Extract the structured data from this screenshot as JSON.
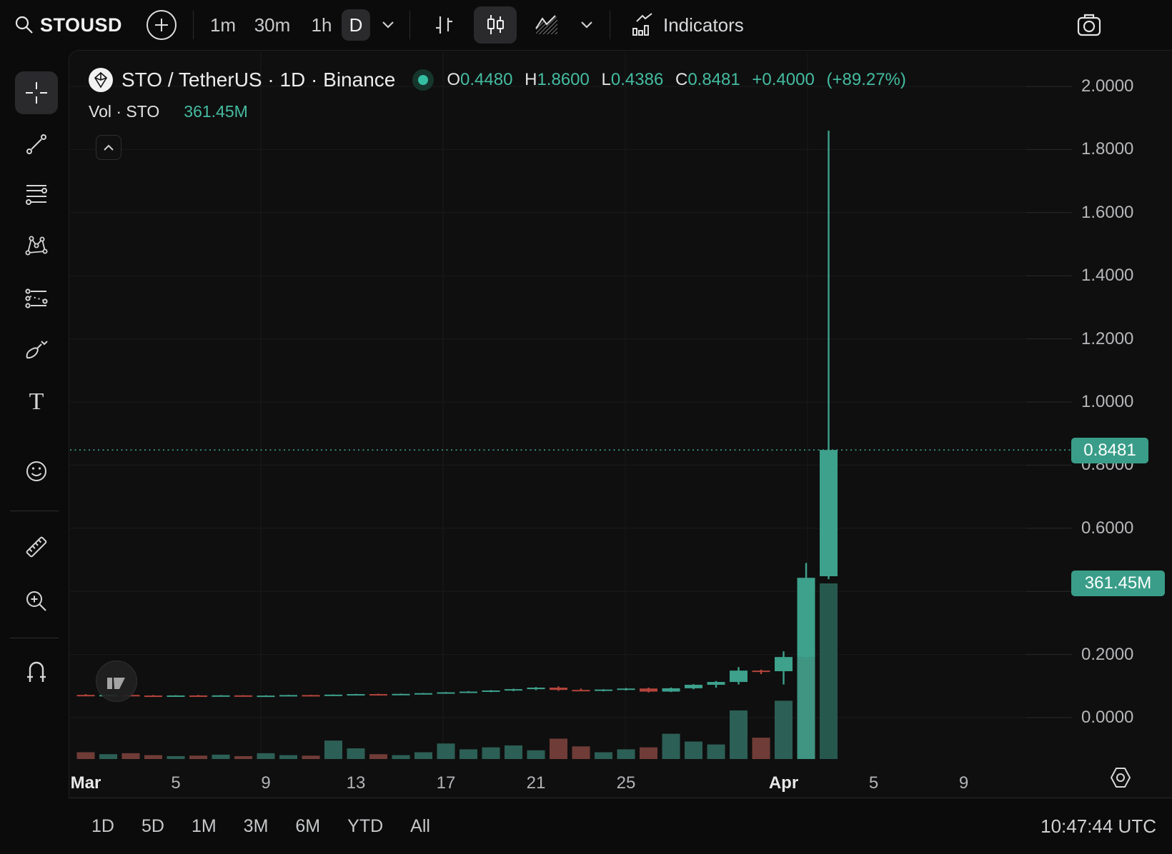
{
  "toolbar": {
    "symbol": "STOUSD",
    "timeframes": [
      "1m",
      "30m",
      "1h"
    ],
    "active_timeframe": "D",
    "indicators_label": "Indicators"
  },
  "legend": {
    "title": "STO / TetherUS · 1D · Binance",
    "ohlc": {
      "o_label": "O",
      "o": "0.4480",
      "h_label": "H",
      "h": "1.8600",
      "l_label": "L",
      "l": "0.4386",
      "c_label": "C",
      "c": "0.8481",
      "change": "+0.4000",
      "change_pct": "(+89.27%)"
    },
    "volume_label": "Vol · STO",
    "volume_value": "361.45M"
  },
  "price_axis": {
    "labels": [
      "2.0000",
      "1.8000",
      "1.6000",
      "1.4000",
      "1.2000",
      "1.0000",
      "0.8000",
      "0.6000",
      "0.4000",
      "0.2000",
      "0.0000"
    ],
    "price_badge": "0.8481",
    "volume_badge": "361.45M"
  },
  "time_axis": {
    "labels": [
      {
        "text": "Mar",
        "day": 0,
        "major": true
      },
      {
        "text": "5",
        "day": 4,
        "major": false
      },
      {
        "text": "9",
        "day": 8,
        "major": false
      },
      {
        "text": "13",
        "day": 12,
        "major": false
      },
      {
        "text": "17",
        "day": 16,
        "major": false
      },
      {
        "text": "21",
        "day": 20,
        "major": false
      },
      {
        "text": "25",
        "day": 24,
        "major": false
      },
      {
        "text": "Apr",
        "day": 31,
        "major": true
      },
      {
        "text": "5",
        "day": 35,
        "major": false
      },
      {
        "text": "9",
        "day": 39,
        "major": false
      }
    ]
  },
  "bottom_bar": {
    "ranges": [
      "1D",
      "5D",
      "1M",
      "3M",
      "6M",
      "YTD",
      "All"
    ],
    "clock": "10:47:44 UTC"
  },
  "colors": {
    "candle_up": "#3da18c",
    "candle_down": "#b5443c",
    "vol_up": "#2c5f55",
    "vol_down": "#703c37",
    "vol_bright": "#3f9482",
    "vol_last": "#27584e",
    "accent_teal": "#3fa28e",
    "badge_bg": "#3a9d89",
    "value_text": "#45bca1",
    "grid": "#1b1b1b"
  },
  "chart_data": {
    "type": "candlestick",
    "symbol": "STO/USDT",
    "exchange": "Binance",
    "interval": "1D",
    "price_range": [
      0.0,
      2.0
    ],
    "grid": "on",
    "last_close": 0.8481,
    "last_volume_label": "361.45M",
    "candles": [
      {
        "d": "Mar 1",
        "o": 0.072,
        "h": 0.0745,
        "l": 0.0698,
        "c": 0.0705,
        "v": 14
      },
      {
        "d": "Mar 2",
        "o": 0.0705,
        "h": 0.073,
        "l": 0.069,
        "c": 0.0718,
        "v": 10
      },
      {
        "d": "Mar 3",
        "o": 0.0718,
        "h": 0.0732,
        "l": 0.0695,
        "c": 0.07,
        "v": 12
      },
      {
        "d": "Mar 4",
        "o": 0.07,
        "h": 0.0715,
        "l": 0.068,
        "c": 0.0688,
        "v": 8
      },
      {
        "d": "Mar 5",
        "o": 0.0688,
        "h": 0.071,
        "l": 0.0672,
        "c": 0.0702,
        "v": 6
      },
      {
        "d": "Mar 6",
        "o": 0.0702,
        "h": 0.0718,
        "l": 0.0685,
        "c": 0.0692,
        "v": 7
      },
      {
        "d": "Mar 7",
        "o": 0.0692,
        "h": 0.0712,
        "l": 0.0678,
        "c": 0.0705,
        "v": 9
      },
      {
        "d": "Mar 8",
        "o": 0.0705,
        "h": 0.0712,
        "l": 0.0682,
        "c": 0.069,
        "v": 6
      },
      {
        "d": "Mar 9",
        "o": 0.069,
        "h": 0.0708,
        "l": 0.0675,
        "c": 0.0698,
        "v": 12
      },
      {
        "d": "Mar 10",
        "o": 0.0698,
        "h": 0.0722,
        "l": 0.0688,
        "c": 0.0715,
        "v": 8
      },
      {
        "d": "Mar 11",
        "o": 0.0715,
        "h": 0.0722,
        "l": 0.0692,
        "c": 0.07,
        "v": 7
      },
      {
        "d": "Mar 12",
        "o": 0.07,
        "h": 0.0735,
        "l": 0.0693,
        "c": 0.0728,
        "v": 38
      },
      {
        "d": "Mar 13",
        "o": 0.0728,
        "h": 0.0752,
        "l": 0.071,
        "c": 0.0745,
        "v": 22
      },
      {
        "d": "Mar 14",
        "o": 0.0745,
        "h": 0.0758,
        "l": 0.0715,
        "c": 0.0722,
        "v": 10
      },
      {
        "d": "Mar 15",
        "o": 0.0722,
        "h": 0.076,
        "l": 0.0712,
        "c": 0.0752,
        "v": 8
      },
      {
        "d": "Mar 16",
        "o": 0.0752,
        "h": 0.0782,
        "l": 0.074,
        "c": 0.0775,
        "v": 14
      },
      {
        "d": "Mar 17",
        "o": 0.0775,
        "h": 0.0812,
        "l": 0.0758,
        "c": 0.0802,
        "v": 32
      },
      {
        "d": "Mar 18",
        "o": 0.0802,
        "h": 0.084,
        "l": 0.078,
        "c": 0.0825,
        "v": 20
      },
      {
        "d": "Mar 19",
        "o": 0.0825,
        "h": 0.0872,
        "l": 0.0805,
        "c": 0.086,
        "v": 24
      },
      {
        "d": "Mar 20",
        "o": 0.086,
        "h": 0.0915,
        "l": 0.0838,
        "c": 0.0902,
        "v": 28
      },
      {
        "d": "Mar 21",
        "o": 0.0902,
        "h": 0.0968,
        "l": 0.0872,
        "c": 0.095,
        "v": 18
      },
      {
        "d": "Mar 22",
        "o": 0.095,
        "h": 0.099,
        "l": 0.085,
        "c": 0.0878,
        "v": 42
      },
      {
        "d": "Mar 23",
        "o": 0.0878,
        "h": 0.092,
        "l": 0.084,
        "c": 0.0858,
        "v": 26
      },
      {
        "d": "Mar 24",
        "o": 0.0858,
        "h": 0.09,
        "l": 0.0832,
        "c": 0.089,
        "v": 14
      },
      {
        "d": "Mar 25",
        "o": 0.089,
        "h": 0.0938,
        "l": 0.086,
        "c": 0.0922,
        "v": 20
      },
      {
        "d": "Mar 26",
        "o": 0.0922,
        "h": 0.095,
        "l": 0.0798,
        "c": 0.0825,
        "v": 24
      },
      {
        "d": "Mar 27",
        "o": 0.0825,
        "h": 0.0952,
        "l": 0.081,
        "c": 0.093,
        "v": 52
      },
      {
        "d": "Mar 28",
        "o": 0.093,
        "h": 0.106,
        "l": 0.09,
        "c": 0.104,
        "v": 36
      },
      {
        "d": "Mar 29",
        "o": 0.104,
        "h": 0.116,
        "l": 0.095,
        "c": 0.113,
        "v": 30
      },
      {
        "d": "Mar 30",
        "o": 0.113,
        "h": 0.16,
        "l": 0.105,
        "c": 0.149,
        "v": 100
      },
      {
        "d": "Mar 31",
        "o": 0.149,
        "h": 0.152,
        "l": 0.138,
        "c": 0.147,
        "v": 44
      },
      {
        "d": "Apr 1",
        "o": 0.147,
        "h": 0.21,
        "l": 0.105,
        "c": 0.192,
        "v": 120
      },
      {
        "d": "Apr 2",
        "o": 0.192,
        "h": 0.49,
        "l": 0.185,
        "c": 0.443,
        "v": 238
      },
      {
        "d": "Apr 3",
        "o": 0.448,
        "h": 1.86,
        "l": 0.4386,
        "c": 0.8481,
        "v": 361.45
      }
    ]
  }
}
